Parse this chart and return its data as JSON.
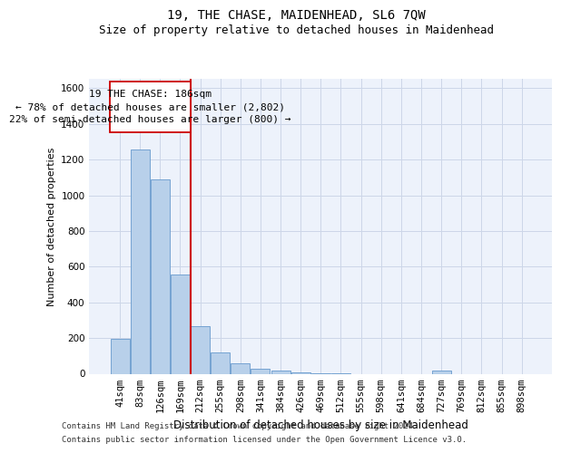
{
  "title": "19, THE CHASE, MAIDENHEAD, SL6 7QW",
  "subtitle": "Size of property relative to detached houses in Maidenhead",
  "xlabel": "Distribution of detached houses by size in Maidenhead",
  "ylabel": "Number of detached properties",
  "footer1": "Contains HM Land Registry data © Crown copyright and database right 2024.",
  "footer2": "Contains public sector information licensed under the Open Government Licence v3.0.",
  "categories": [
    "41sqm",
    "83sqm",
    "126sqm",
    "169sqm",
    "212sqm",
    "255sqm",
    "298sqm",
    "341sqm",
    "384sqm",
    "426sqm",
    "469sqm",
    "512sqm",
    "555sqm",
    "598sqm",
    "641sqm",
    "684sqm",
    "727sqm",
    "769sqm",
    "812sqm",
    "855sqm",
    "898sqm"
  ],
  "values": [
    196,
    1258,
    1090,
    558,
    265,
    120,
    58,
    30,
    20,
    10,
    5,
    5,
    0,
    0,
    0,
    0,
    20,
    0,
    0,
    0,
    0
  ],
  "bar_color": "#b8d0ea",
  "bar_edge_color": "#6699cc",
  "vline_color": "#cc0000",
  "vline_pos": 3.5,
  "annotation_line1": "19 THE CHASE: 186sqm",
  "annotation_line2": "← 78% of detached houses are smaller (2,802)",
  "annotation_line3": "22% of semi-detached houses are larger (800) →",
  "ylim": [
    0,
    1650
  ],
  "yticks": [
    0,
    200,
    400,
    600,
    800,
    1000,
    1200,
    1400,
    1600
  ],
  "grid_color": "#ccd6e8",
  "background_color": "#edf2fb",
  "title_fontsize": 10,
  "subtitle_fontsize": 9,
  "xlabel_fontsize": 8.5,
  "ylabel_fontsize": 8,
  "tick_fontsize": 7.5,
  "annotation_fontsize": 8,
  "footer_fontsize": 6.5
}
